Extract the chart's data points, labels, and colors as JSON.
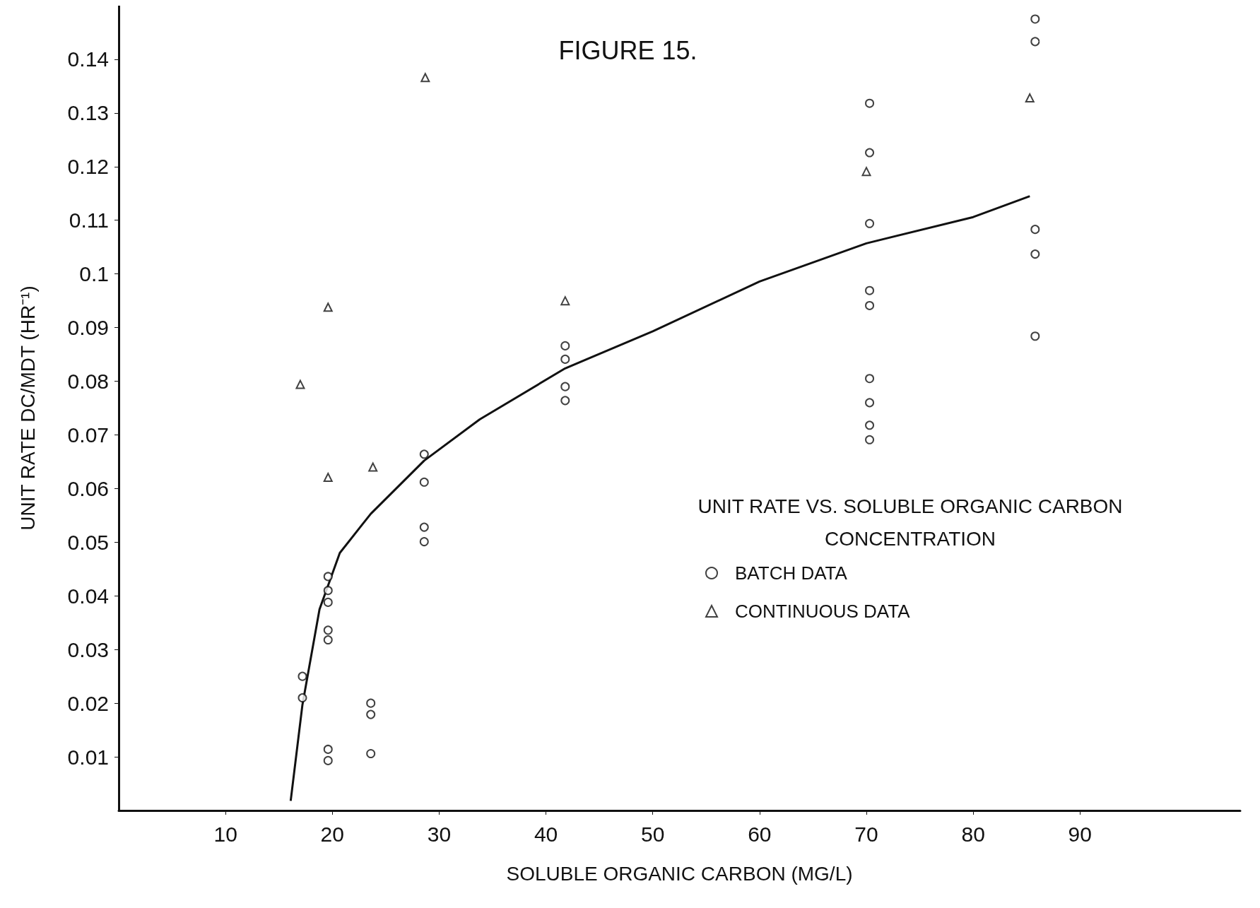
{
  "chart_data": {
    "type": "scatter",
    "title": "FIGURE 15.",
    "xlabel": "SOLUBLE ORGANIC CARBON (MG/L)",
    "ylabel": "UNIT RATE DC/MDT (HR⁻¹)",
    "legend_title": "UNIT RATE VS. SOLUBLE ORGANIC CARBON\nCONCENTRATION",
    "xlim": [
      0,
      105
    ],
    "xticks": [
      10,
      20,
      30,
      40,
      50,
      60,
      70,
      80,
      90
    ],
    "ylim": [
      0,
      0.15
    ],
    "yticks": [
      0.01,
      0.02,
      0.03,
      0.04,
      0.05,
      0.06,
      0.07,
      0.08,
      0.09,
      0.1,
      0.11,
      0.12,
      0.13,
      0.14
    ],
    "grid": false,
    "legend": "right",
    "series": [
      {
        "name": "BATCH DATA",
        "color": "#111111",
        "marker": "circle",
        "x": [
          17.2,
          17.2,
          19.6,
          19.6,
          19.6,
          19.6,
          19.6,
          19.6,
          19.6,
          23.6,
          23.6,
          23.6,
          28.6,
          28.6,
          28.6,
          28.6,
          41.8,
          41.8,
          41.8,
          41.8,
          70.3,
          70.3,
          70.3,
          70.3,
          70.3,
          70.3,
          70.3,
          70.3,
          70.3,
          85.8,
          85.8,
          85.8,
          85.8,
          85.8
        ],
        "values": [
          0.025,
          0.021,
          0.0436,
          0.041,
          0.0388,
          0.0336,
          0.0318,
          0.0114,
          0.0093,
          0.02,
          0.0179,
          0.0106,
          0.0664,
          0.0612,
          0.0528,
          0.0501,
          0.0866,
          0.0841,
          0.079,
          0.0764,
          0.1318,
          0.1226,
          0.1094,
          0.0969,
          0.0941,
          0.0805,
          0.076,
          0.0718,
          0.0691,
          0.1475,
          0.1433,
          0.1083,
          0.1037,
          0.0884
        ]
      },
      {
        "name": "CONTINUOUS DATA",
        "color": "#111111",
        "marker": "triangle",
        "x": [
          17.0,
          19.6,
          19.6,
          23.8,
          28.7,
          41.8,
          70.0,
          85.3
        ],
        "values": [
          0.0794,
          0.0938,
          0.0621,
          0.064,
          0.1366,
          0.095,
          0.1191,
          0.1328
        ]
      },
      {
        "type": "line",
        "color": "#111111",
        "marker": "none",
        "line_style": "solid",
        "x": [
          16.1,
          17.2,
          18.8,
          20.7,
          23.6,
          28.6,
          33.8,
          41.8,
          50,
          60,
          70,
          80,
          85.3
        ],
        "values": [
          0.0018,
          0.0197,
          0.0375,
          0.048,
          0.0553,
          0.0652,
          0.0729,
          0.0824,
          0.0893,
          0.0986,
          0.1057,
          0.1106,
          0.1145
        ]
      }
    ]
  }
}
